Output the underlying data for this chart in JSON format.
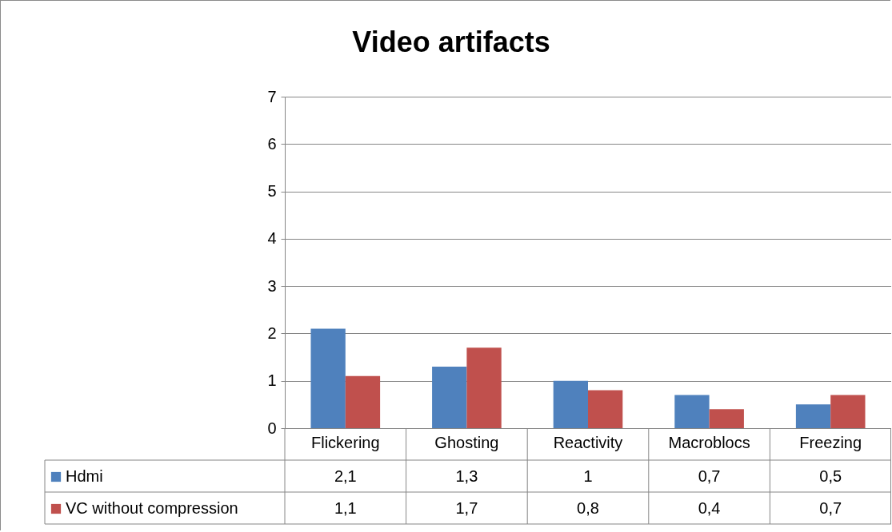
{
  "chart_data": {
    "type": "bar",
    "title": "Video artifacts",
    "categories": [
      "Flickering",
      "Ghosting",
      "Reactivity",
      "Macroblocs",
      "Freezing"
    ],
    "series": [
      {
        "name": "Hdmi",
        "color": "#4f81bd",
        "values": [
          2.1,
          1.3,
          1,
          0.7,
          0.5
        ],
        "value_labels": [
          "2,1",
          "1,3",
          "1",
          "0,7",
          "0,5"
        ]
      },
      {
        "name": "VC without compression",
        "color": "#c0504d",
        "values": [
          1.1,
          1.7,
          0.8,
          0.4,
          0.7
        ],
        "value_labels": [
          "1,1",
          "1,7",
          "0,8",
          "0,4",
          "0,7"
        ]
      }
    ],
    "ylim": [
      0,
      7
    ],
    "yticks": [
      0,
      1,
      2,
      3,
      4,
      5,
      6,
      7
    ],
    "grid": "y",
    "legend": "bottom left"
  }
}
